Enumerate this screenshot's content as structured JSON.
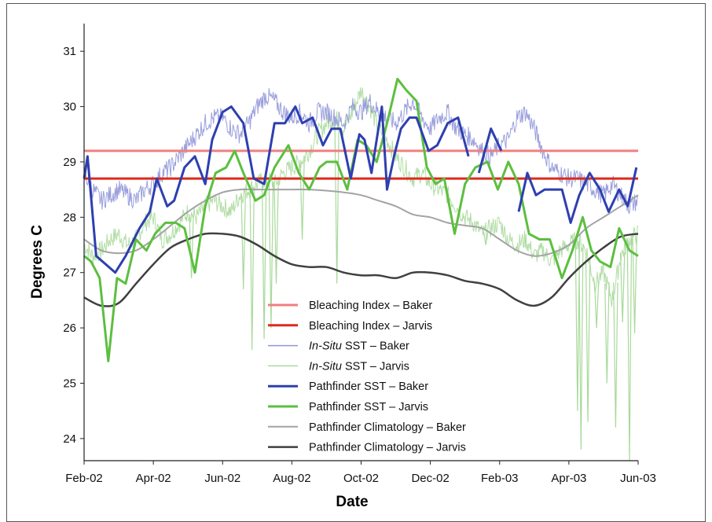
{
  "chart_data": {
    "type": "line",
    "xlabel": "Date",
    "ylabel": "Degrees C",
    "x_ticks": [
      "Feb-02",
      "Apr-02",
      "Jun-02",
      "Aug-02",
      "Oct-02",
      "Dec-02",
      "Feb-03",
      "Apr-03",
      "Jun-03"
    ],
    "y_ticks": [
      24,
      25,
      26,
      27,
      28,
      29,
      30,
      31
    ],
    "xlim": [
      "Feb-02",
      "Jun-03"
    ],
    "ylim": [
      23.6,
      31.5
    ],
    "grid": false,
    "legend_position": "bottom-center",
    "series": [
      {
        "name": "Bleaching Index – Baker",
        "color": "#f07f7f",
        "width": 3,
        "style": "flat",
        "y": 29.2
      },
      {
        "name": "Bleaching Index – Jarvis",
        "color": "#dd2a1b",
        "width": 3,
        "style": "flat",
        "y": 28.7
      },
      {
        "name": "In-Situ SST – Baker",
        "name_italic": "In-Situ",
        "name_rest": " SST – Baker",
        "color": "#8f95d8",
        "width": 1,
        "style": "noisy",
        "x": [
          0,
          0.25,
          0.5,
          0.75,
          1,
          1.25,
          1.5,
          1.75,
          2,
          2.25,
          2.5,
          2.75,
          3,
          3.25,
          3.5,
          3.75,
          4,
          4.25,
          4.5,
          4.75,
          5,
          5.25,
          5.5,
          5.75,
          6,
          6.25,
          6.5,
          6.75,
          7,
          7.25,
          7.5,
          7.75,
          8,
          8.25,
          8.5,
          8.75,
          9,
          9.25,
          9.5,
          9.75,
          10,
          10.25,
          10.5,
          10.75,
          11,
          11.25,
          11.5,
          11.75,
          12,
          12.25,
          12.5,
          12.75,
          13,
          13.25,
          13.5,
          13.75,
          14,
          14.25,
          14.5,
          14.75,
          15,
          15.25,
          15.5,
          15.75,
          16
        ],
        "y": [
          28.8,
          28.5,
          28.3,
          28.4,
          28.5,
          28.4,
          28.3,
          28.5,
          28.6,
          28.8,
          28.9,
          29.1,
          29.3,
          29.5,
          29.7,
          29.8,
          29.8,
          29.6,
          29.5,
          29.7,
          30.0,
          30.2,
          30.1,
          29.9,
          29.8,
          29.9,
          29.7,
          29.9,
          29.9,
          29.8,
          29.7,
          30.0,
          29.9,
          30.1,
          29.9,
          29.8,
          29.7,
          29.9,
          30.1,
          29.8,
          29.6,
          29.8,
          29.9,
          29.6,
          29.5,
          29.4,
          29.2,
          29.1,
          29.3,
          29.4,
          29.8,
          29.9,
          29.6,
          29.2,
          28.9,
          28.8,
          28.7,
          28.7,
          28.6,
          28.5,
          28.4,
          28.6,
          28.4,
          28.2,
          28.3
        ]
      },
      {
        "name": "In-Situ SST – Jarvis",
        "name_italic": "In-Situ",
        "name_rest": " SST – Jarvis",
        "color": "#a8d99b",
        "width": 1,
        "style": "noisy",
        "x": [
          0,
          0.25,
          0.5,
          0.75,
          1,
          1.25,
          1.5,
          1.75,
          2,
          2.25,
          2.5,
          2.75,
          3,
          3.25,
          3.5,
          3.75,
          4,
          4.25,
          4.5,
          4.75,
          5,
          5.25,
          5.5,
          5.75,
          6,
          6.25,
          6.5,
          6.75,
          7,
          7.25,
          7.5,
          7.75,
          8,
          8.25,
          8.5,
          8.75,
          9,
          9.25,
          9.5,
          9.75,
          10,
          10.25,
          10.5,
          10.75,
          11,
          11.25,
          11.5,
          11.75,
          12,
          12.25,
          12.5,
          12.75,
          13,
          13.25,
          13.5,
          13.75,
          14,
          14.25,
          14.5,
          14.75,
          15,
          15.25,
          15.5,
          15.75,
          16
        ],
        "y": [
          27.5,
          27.3,
          27.4,
          27.6,
          27.7,
          27.5,
          27.6,
          27.9,
          28.0,
          27.6,
          27.7,
          27.9,
          28.1,
          28.0,
          28.2,
          28.3,
          28.2,
          28.1,
          28.4,
          28.5,
          28.6,
          28.7,
          28.6,
          28.8,
          28.9,
          29.0,
          29.2,
          29.5,
          29.7,
          29.8,
          29.6,
          29.9,
          30.3,
          30.0,
          29.6,
          29.4,
          29.1,
          28.9,
          28.7,
          28.8,
          28.6,
          28.5,
          28.4,
          28.2,
          28.0,
          27.9,
          27.7,
          27.8,
          27.9,
          27.6,
          27.5,
          27.6,
          27.3,
          27.4,
          27.2,
          27.4,
          27.5,
          27.6,
          27.4,
          26.8,
          27.0,
          26.5,
          27.3,
          27.6,
          27.7
        ],
        "dips": [
          [
            3.1,
            26.9
          ],
          [
            4.6,
            26.7
          ],
          [
            4.85,
            25.6
          ],
          [
            5.2,
            25.8
          ],
          [
            5.4,
            26.0
          ],
          [
            5.55,
            26.8
          ],
          [
            6.3,
            27.6
          ],
          [
            7.3,
            26.8
          ],
          [
            11.6,
            27.5
          ],
          [
            14.25,
            24.5
          ],
          [
            14.35,
            23.8
          ],
          [
            14.55,
            24.3
          ],
          [
            14.8,
            26.0
          ],
          [
            15.1,
            25.0
          ],
          [
            15.35,
            24.2
          ],
          [
            15.55,
            26.1
          ],
          [
            15.75,
            23.6
          ],
          [
            15.9,
            25.9
          ]
        ]
      },
      {
        "name": "Pathfinder SST – Baker",
        "color": "#2e3fb0",
        "width": 3,
        "style": "line",
        "segments": [
          {
            "x": [
              0,
              0.1,
              0.35,
              0.9,
              1.2,
              1.6,
              1.9,
              2.1,
              2.4,
              2.6,
              2.9,
              3.2,
              3.5,
              3.7,
              4.0,
              4.25,
              4.6,
              4.9,
              5.2,
              5.5,
              5.8,
              6.1,
              6.3,
              6.6,
              6.9,
              7.15,
              7.4,
              7.7,
              7.95,
              8.1,
              8.3,
              8.6,
              8.75,
              8.95,
              9.15,
              9.4,
              9.6,
              9.95,
              10.2,
              10.5,
              10.8,
              11.1
            ],
            "y": [
              28.7,
              29.1,
              27.3,
              27.0,
              27.3,
              27.8,
              28.1,
              28.7,
              28.2,
              28.3,
              28.9,
              29.1,
              28.6,
              29.4,
              29.9,
              30.0,
              29.7,
              28.7,
              28.6,
              29.7,
              29.7,
              30.0,
              29.7,
              29.8,
              29.3,
              29.6,
              29.6,
              28.7,
              29.5,
              29.4,
              28.8,
              30.0,
              28.5,
              29.1,
              29.6,
              29.8,
              29.8,
              29.2,
              29.3,
              29.7,
              29.8,
              29.1
            ]
          },
          {
            "x": [
              11.4,
              11.75,
              12.05
            ],
            "y": [
              28.8,
              29.6,
              29.2
            ]
          },
          {
            "x": [
              12.55,
              12.8,
              13.05,
              13.3,
              13.55,
              13.8,
              14.05,
              14.3,
              14.6,
              14.9,
              15.15,
              15.45,
              15.7,
              15.95
            ],
            "y": [
              28.1,
              28.8,
              28.4,
              28.5,
              28.5,
              28.5,
              27.9,
              28.4,
              28.8,
              28.5,
              28.1,
              28.5,
              28.2,
              28.9
            ]
          }
        ]
      },
      {
        "name": "Pathfinder SST – Jarvis",
        "color": "#5cbf3f",
        "width": 3,
        "style": "line",
        "segments": [
          {
            "x": [
              0,
              0.2,
              0.45,
              0.7,
              0.95,
              1.2,
              1.5,
              1.8,
              2.05,
              2.35,
              2.65,
              2.9,
              3.2,
              3.5,
              3.8,
              4.1,
              4.35,
              4.6,
              4.95,
              5.2,
              5.5,
              5.9,
              6.2,
              6.5,
              6.8,
              7.0,
              7.3,
              7.6,
              7.9,
              8.15,
              8.45,
              8.75,
              9.05,
              9.3,
              9.6,
              9.9,
              10.15,
              10.4,
              10.7,
              11.0,
              11.3,
              11.65,
              11.95,
              12.25,
              12.55,
              12.85,
              13.15,
              13.45,
              13.8,
              14.1,
              14.4,
              14.65,
              14.9,
              15.2,
              15.45,
              15.75,
              16.0
            ],
            "y": [
              27.3,
              27.2,
              26.9,
              25.4,
              26.9,
              26.8,
              27.6,
              27.4,
              27.7,
              27.9,
              27.9,
              27.8,
              27.0,
              28.2,
              28.8,
              28.9,
              29.2,
              28.8,
              28.3,
              28.4,
              28.9,
              29.3,
              28.8,
              28.5,
              28.9,
              29.0,
              29.0,
              28.5,
              29.4,
              29.3,
              29.0,
              29.7,
              30.5,
              30.3,
              30.1,
              28.9,
              28.6,
              28.7,
              27.7,
              28.6,
              28.9,
              29.0,
              28.5,
              29.0,
              28.6,
              27.7,
              27.6,
              27.6,
              26.9,
              27.4,
              28.0,
              27.4,
              27.2,
              27.1,
              27.8,
              27.4,
              27.3
            ]
          }
        ]
      },
      {
        "name": "Pathfinder Climatology – Baker",
        "color": "#a3a3a3",
        "width": 2,
        "style": "smooth",
        "x": [
          0,
          0.5,
          1,
          1.5,
          2,
          2.5,
          3,
          3.5,
          4,
          4.5,
          5,
          5.5,
          6,
          6.5,
          7,
          7.5,
          8,
          8.5,
          9,
          9.5,
          10,
          10.5,
          11,
          11.5,
          12,
          12.5,
          13,
          13.5,
          14,
          14.5,
          15,
          15.5,
          16
        ],
        "y": [
          27.6,
          27.4,
          27.35,
          27.4,
          27.6,
          27.85,
          28.1,
          28.3,
          28.45,
          28.5,
          28.5,
          28.5,
          28.5,
          28.5,
          28.48,
          28.45,
          28.4,
          28.3,
          28.2,
          28.05,
          28.0,
          27.9,
          27.85,
          27.8,
          27.6,
          27.4,
          27.3,
          27.35,
          27.5,
          27.8,
          28.0,
          28.2,
          28.4
        ]
      },
      {
        "name": "Pathfinder Climatology – Jarvis",
        "color": "#404040",
        "width": 2.5,
        "style": "smooth",
        "x": [
          0,
          0.5,
          1,
          1.5,
          2,
          2.5,
          3,
          3.5,
          4,
          4.5,
          5,
          5.5,
          6,
          6.5,
          7,
          7.5,
          8,
          8.5,
          9,
          9.5,
          10,
          10.5,
          11,
          11.5,
          12,
          12.5,
          13,
          13.5,
          14,
          14.5,
          15,
          15.5,
          16
        ],
        "y": [
          26.55,
          26.4,
          26.45,
          26.8,
          27.15,
          27.45,
          27.6,
          27.7,
          27.7,
          27.65,
          27.5,
          27.3,
          27.15,
          27.1,
          27.1,
          27.0,
          26.95,
          26.95,
          26.9,
          27.0,
          27.0,
          26.95,
          26.85,
          26.8,
          26.7,
          26.5,
          26.4,
          26.55,
          26.9,
          27.2,
          27.45,
          27.65,
          27.7
        ]
      }
    ]
  }
}
